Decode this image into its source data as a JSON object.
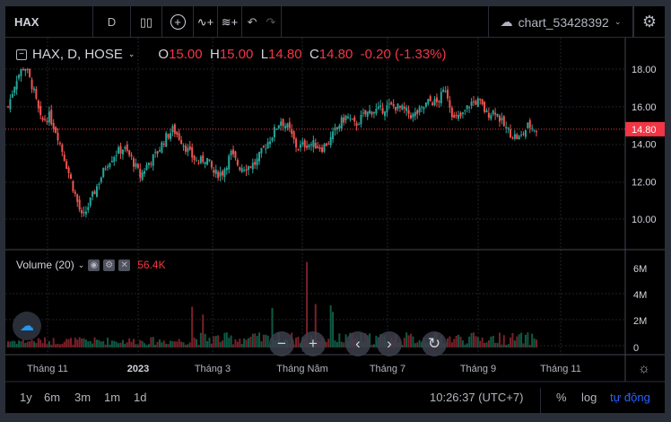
{
  "toolbar": {
    "symbol": "HAX",
    "interval": "D",
    "chart_name": "chart_53428392"
  },
  "legend": {
    "title": "HAX, D, HOSE",
    "o_label": "O",
    "o": "15.00",
    "h_label": "H",
    "h": "15.00",
    "l_label": "L",
    "l": "14.80",
    "c_label": "C",
    "c": "14.80",
    "change": "-0.20 (-1.33%)"
  },
  "price_axis": {
    "ticks": [
      "18.00",
      "16.00",
      "14.00",
      "12.00",
      "10.00"
    ],
    "last_price": "14.80"
  },
  "volume": {
    "title": "Volume (20)",
    "value": "56.4K",
    "ticks": [
      "6M",
      "4M",
      "2M",
      "0"
    ]
  },
  "time_axis": [
    "Tháng 11",
    "2023",
    "Tháng 3",
    "Tháng Năm",
    "Tháng 7",
    "Tháng 9",
    "Tháng 11"
  ],
  "bottom": {
    "ranges": [
      "1y",
      "6m",
      "3m",
      "1m",
      "1d"
    ],
    "clock": "10:26:37 (UTC+7)",
    "percent": "%",
    "log": "log",
    "auto": "tự động"
  },
  "colors": {
    "up": "#26a69a",
    "down": "#ef5350",
    "bg": "#000000",
    "accent": "#2962ff"
  },
  "chart_data": {
    "type": "candlestick",
    "ylim": [
      9,
      19
    ],
    "price_path": [
      16.0,
      17.5,
      18.2,
      17.0,
      15.2,
      15.5,
      14.5,
      13.0,
      11.5,
      10.0,
      11.0,
      12.0,
      13.0,
      13.5,
      13.8,
      13.2,
      12.3,
      13.0,
      13.5,
      14.3,
      14.8,
      14.2,
      13.5,
      13.0,
      13.3,
      12.4,
      12.5,
      13.5,
      12.8,
      12.8,
      13.0,
      13.8,
      14.5,
      15.3,
      14.8,
      13.8,
      14.0,
      14.0,
      13.8,
      14.2,
      15.0,
      15.5,
      15.0,
      15.5,
      15.8,
      15.8,
      16.0,
      16.0,
      15.8,
      15.5,
      15.8,
      16.3,
      16.2,
      17.0,
      15.3,
      15.5,
      16.2,
      16.3,
      15.6,
      15.8,
      15.0,
      14.5,
      14.3,
      15.0,
      14.8
    ],
    "volume_spikes_millions": {
      "0.35": 3.1,
      "0.37": 2.5,
      "0.5": 3.0,
      "0.565": 6.5,
      "0.58": 3.3,
      "0.61": 3.2,
      "0.615": 2.7
    }
  }
}
